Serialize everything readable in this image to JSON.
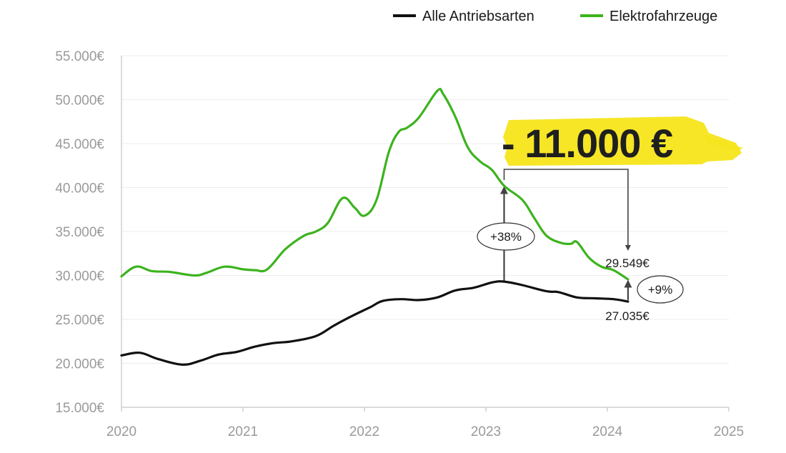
{
  "chart_data": {
    "type": "line",
    "title": "",
    "xlabel": "",
    "ylabel": "",
    "xlim": [
      2020,
      2025
    ],
    "ylim": [
      15000,
      55000
    ],
    "x_ticks": [
      "2020",
      "2021",
      "2022",
      "2023",
      "2024",
      "2025"
    ],
    "y_ticks": [
      "15.000€",
      "20.000€",
      "25.000€",
      "30.000€",
      "35.000€",
      "40.000€",
      "45.000€",
      "50.000€",
      "55.000€"
    ],
    "grid": true,
    "legend_position": "top-right",
    "series": [
      {
        "name": "Alle Antriebsarten",
        "color": "#111111",
        "points": [
          [
            2020.0,
            20900
          ],
          [
            2020.15,
            21200
          ],
          [
            2020.3,
            20500
          ],
          [
            2020.5,
            19850
          ],
          [
            2020.65,
            20300
          ],
          [
            2020.8,
            21000
          ],
          [
            2020.95,
            21300
          ],
          [
            2021.1,
            21900
          ],
          [
            2021.25,
            22300
          ],
          [
            2021.4,
            22500
          ],
          [
            2021.6,
            23100
          ],
          [
            2021.75,
            24300
          ],
          [
            2021.9,
            25400
          ],
          [
            2022.05,
            26400
          ],
          [
            2022.15,
            27100
          ],
          [
            2022.3,
            27300
          ],
          [
            2022.45,
            27200
          ],
          [
            2022.6,
            27500
          ],
          [
            2022.75,
            28300
          ],
          [
            2022.9,
            28600
          ],
          [
            2023.05,
            29200
          ],
          [
            2023.15,
            29300
          ],
          [
            2023.3,
            28900
          ],
          [
            2023.5,
            28200
          ],
          [
            2023.6,
            28100
          ],
          [
            2023.75,
            27500
          ],
          [
            2023.9,
            27400
          ],
          [
            2024.05,
            27300
          ],
          [
            2024.17,
            27035
          ]
        ]
      },
      {
        "name": "Elektrofahrzeuge",
        "color": "#3cb31e",
        "points": [
          [
            2020.0,
            29900
          ],
          [
            2020.12,
            31000
          ],
          [
            2020.25,
            30500
          ],
          [
            2020.4,
            30400
          ],
          [
            2020.6,
            30000
          ],
          [
            2020.7,
            30300
          ],
          [
            2020.85,
            31000
          ],
          [
            2021.0,
            30700
          ],
          [
            2021.1,
            30600
          ],
          [
            2021.2,
            30700
          ],
          [
            2021.35,
            33000
          ],
          [
            2021.5,
            34500
          ],
          [
            2021.6,
            35000
          ],
          [
            2021.7,
            36000
          ],
          [
            2021.82,
            38800
          ],
          [
            2021.92,
            37700
          ],
          [
            2022.0,
            36800
          ],
          [
            2022.1,
            38600
          ],
          [
            2022.2,
            44000
          ],
          [
            2022.28,
            46300
          ],
          [
            2022.35,
            46800
          ],
          [
            2022.45,
            48000
          ],
          [
            2022.6,
            51000
          ],
          [
            2022.65,
            50600
          ],
          [
            2022.75,
            48000
          ],
          [
            2022.85,
            44600
          ],
          [
            2022.95,
            43000
          ],
          [
            2023.05,
            42000
          ],
          [
            2023.15,
            40200
          ],
          [
            2023.3,
            38600
          ],
          [
            2023.4,
            36500
          ],
          [
            2023.5,
            34500
          ],
          [
            2023.62,
            33700
          ],
          [
            2023.7,
            33600
          ],
          [
            2023.75,
            33800
          ],
          [
            2023.85,
            32000
          ],
          [
            2023.95,
            31000
          ],
          [
            2024.05,
            30600
          ],
          [
            2024.17,
            29549
          ]
        ]
      }
    ],
    "annotations": {
      "headline": "- 11.000 €",
      "pct_2023": "+38%",
      "pct_2024": "+9%",
      "ev_end_label": "29.549€",
      "all_end_label": "27.035€",
      "highlight_color": "#f5e51a",
      "arrow_color": "#444444",
      "compare_x_2023": 2023.15,
      "compare_x_2024": 2024.17,
      "all_2023_value": 29300,
      "ev_2023_value": 40200,
      "all_2024_value": 27035,
      "ev_2024_value": 29549
    }
  }
}
